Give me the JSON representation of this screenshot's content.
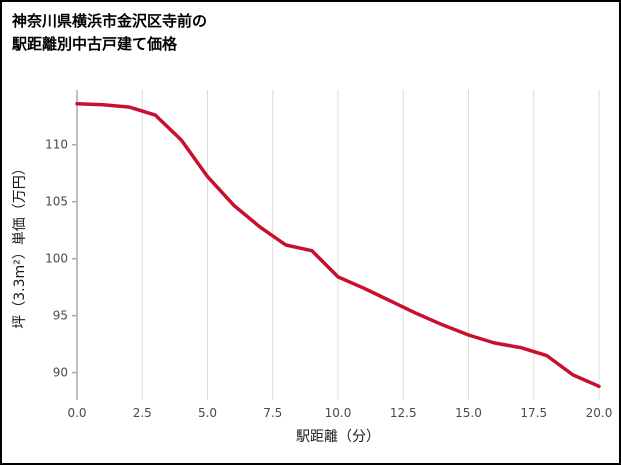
{
  "page": {
    "background": "#ffffff",
    "border_color": "#000000"
  },
  "title": {
    "line1": "神奈川県横浜市金沢区寺前の",
    "line2": "駅距離別中古戸建て価格"
  },
  "chart_data": {
    "type": "line",
    "title": "神奈川県横浜市金沢区寺前の駅距離別中古戸建て価格",
    "xlabel": "駅距離（分）",
    "ylabel": "坪（3.3m²）単価（万円）",
    "x": [
      0,
      1,
      2,
      3,
      4,
      5,
      6,
      7,
      8,
      9,
      10,
      11,
      12,
      13,
      14,
      15,
      16,
      17,
      18,
      19,
      20
    ],
    "y": [
      113.6,
      113.5,
      113.3,
      112.6,
      110.4,
      107.2,
      104.7,
      102.8,
      101.2,
      100.7,
      98.4,
      97.4,
      96.3,
      95.2,
      94.2,
      93.3,
      92.6,
      92.2,
      91.5,
      89.8,
      88.8
    ],
    "series_name": "坪単価",
    "line_color": "#c8102e",
    "line_width": 3.5,
    "xlim": [
      0,
      20
    ],
    "ylim": [
      87.6,
      114.8
    ],
    "x_ticks": [
      0,
      2.5,
      5,
      7.5,
      10,
      12.5,
      15,
      17.5,
      20
    ],
    "x_tick_labels": [
      "0.0",
      "2.5",
      "5.0",
      "7.5",
      "10.0",
      "12.5",
      "15.0",
      "17.5",
      "20.0"
    ],
    "y_ticks": [
      90,
      95,
      100,
      105,
      110
    ],
    "y_tick_labels": [
      "90",
      "95",
      "100",
      "105",
      "110"
    ],
    "grid": "vertical",
    "grid_color": "#dcdcdc",
    "spine_color": "#ababab",
    "legend": "none"
  }
}
